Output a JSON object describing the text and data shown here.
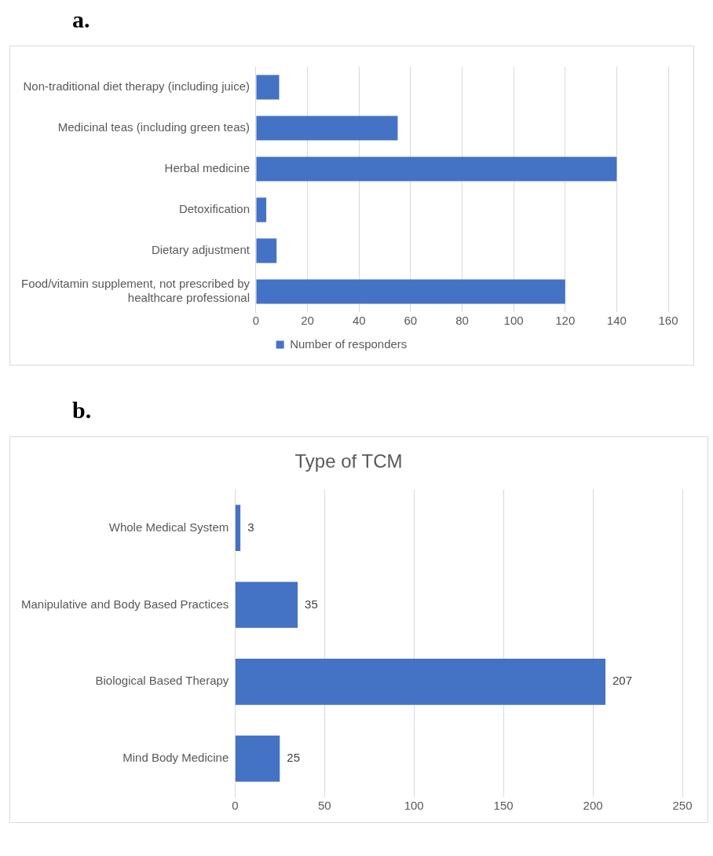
{
  "chart_data": [
    {
      "type": "bar",
      "orientation": "horizontal",
      "annotations": [
        "a."
      ],
      "categories": [
        "Non-traditional diet therapy (including juice)",
        "Medicinal teas (including green teas)",
        "Herbal medicine",
        "Detoxification",
        "Dietary adjustment",
        "Food/vitamin supplement, not prescribed by healthcare professional"
      ],
      "series": [
        {
          "name": "Number of responders",
          "color": "#4472c4",
          "values": [
            9,
            55,
            140,
            4,
            8,
            120
          ]
        }
      ],
      "xlim": [
        0,
        160
      ],
      "xticks": [
        0,
        20,
        40,
        60,
        80,
        100,
        120,
        140,
        160
      ],
      "grid": "x",
      "legend": "bottom"
    },
    {
      "type": "bar",
      "orientation": "horizontal",
      "annotations": [
        "b."
      ],
      "title": "Type of TCM",
      "categories": [
        "Whole Medical System",
        "Manipulative and Body Based Practices",
        "Biological Based Therapy",
        "Mind Body Medicine"
      ],
      "values": [
        3,
        35,
        207,
        25
      ],
      "color": "#4472c4",
      "data_labels": true,
      "xlim": [
        0,
        250
      ],
      "xticks": [
        0,
        50,
        100,
        150,
        200,
        250
      ],
      "grid": "x"
    }
  ]
}
